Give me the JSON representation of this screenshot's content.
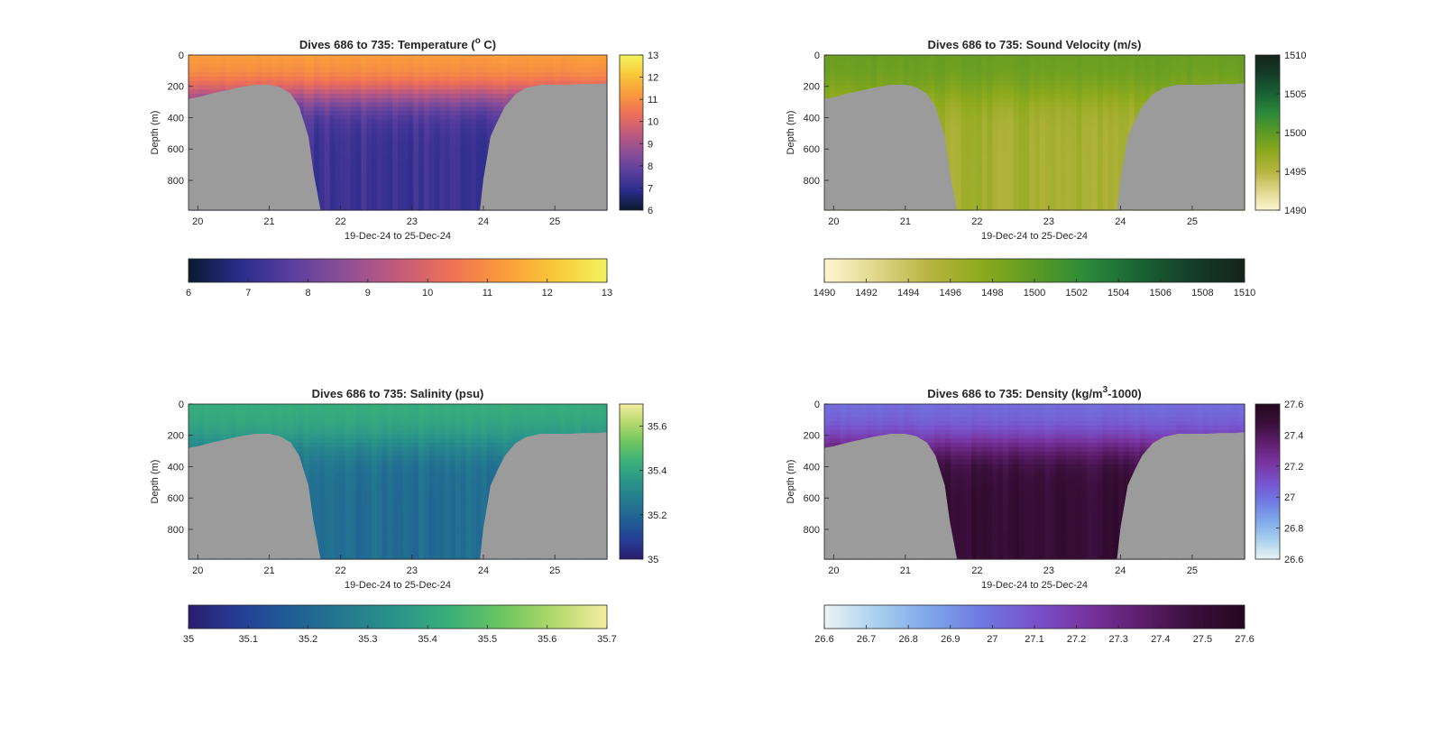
{
  "chart_data": [
    {
      "type": "heatmap",
      "variable": "temperature",
      "title": "Dives 686 to 735: Temperature (",
      "title_sup": "o",
      "title_end": " C)",
      "xlabel": "19-Dec-24 to 25-Dec-24",
      "ylabel": "Depth (m)",
      "x_ticks": [
        "20",
        "21",
        "22",
        "23",
        "24",
        "25"
      ],
      "y_ticks": [
        "0",
        "200",
        "400",
        "600",
        "800"
      ],
      "xlim": [
        19.87,
        25.73
      ],
      "ylim": [
        990,
        0
      ],
      "clim": [
        6,
        13
      ],
      "colormap": [
        "#0a1a2e",
        "#2b2c8c",
        "#5b3f9e",
        "#8e4f96",
        "#c25a7c",
        "#ee7156",
        "#fa9a3c",
        "#f9c83a",
        "#f2f35e"
      ],
      "side_colorbar_ticks": [
        "6",
        "7",
        "8",
        "9",
        "10",
        "11",
        "12",
        "13"
      ],
      "bottom_colorbar_ticks": [
        "6",
        "7",
        "8",
        "9",
        "10",
        "11",
        "12",
        "13"
      ],
      "surface_value": 11.4,
      "deep_value": 7.2,
      "grid": false
    },
    {
      "type": "heatmap",
      "variable": "sound_velocity",
      "title": "Dives 686 to 735: Sound Velocity (m/s)",
      "xlabel": "19-Dec-24 to 25-Dec-24",
      "ylabel": "Depth (m)",
      "x_ticks": [
        "20",
        "21",
        "22",
        "23",
        "24",
        "25"
      ],
      "y_ticks": [
        "0",
        "200",
        "400",
        "600",
        "800"
      ],
      "xlim": [
        19.87,
        25.73
      ],
      "ylim": [
        990,
        0
      ],
      "clim": [
        1490,
        1510
      ],
      "colormap": [
        "#fdf7d2",
        "#e0d68a",
        "#b7b440",
        "#8da91d",
        "#5b9a24",
        "#2c8a3a",
        "#196234",
        "#143e28",
        "#15231a"
      ],
      "side_colorbar_ticks": [
        "1490",
        "1495",
        "1500",
        "1505",
        "1510"
      ],
      "bottom_colorbar_ticks": [
        "1490",
        "1492",
        "1494",
        "1496",
        "1498",
        "1500",
        "1502",
        "1504",
        "1506",
        "1508",
        "1510"
      ],
      "surface_value": 1499.4,
      "deep_value": 1496.2,
      "grid": false
    },
    {
      "type": "heatmap",
      "variable": "salinity",
      "title": "Dives 686 to 735: Salinity (psu)",
      "xlabel": "19-Dec-24 to 25-Dec-24",
      "ylabel": "Depth (m)",
      "x_ticks": [
        "20",
        "21",
        "22",
        "23",
        "24",
        "25"
      ],
      "y_ticks": [
        "0",
        "200",
        "400",
        "600",
        "800"
      ],
      "xlim": [
        19.87,
        25.73
      ],
      "ylim": [
        990,
        0
      ],
      "clim": [
        35.0,
        35.7
      ],
      "colormap": [
        "#2a1c6e",
        "#253f96",
        "#1f5f94",
        "#247a8f",
        "#2a958a",
        "#3ab07a",
        "#6cc55f",
        "#b3d86b",
        "#f4eda0"
      ],
      "side_colorbar_ticks": [
        "35",
        "35.2",
        "35.4",
        "35.6"
      ],
      "bottom_colorbar_ticks": [
        "35",
        "35.1",
        "35.2",
        "35.3",
        "35.4",
        "35.5",
        "35.6",
        "35.7"
      ],
      "surface_value": 35.43,
      "deep_value": 35.22,
      "grid": false
    },
    {
      "type": "heatmap",
      "variable": "density",
      "title": "Dives 686 to 735: Density (kg/m",
      "title_sup": "3",
      "title_end": "-1000)",
      "xlabel": "19-Dec-24 to 25-Dec-24",
      "ylabel": "Depth (m)",
      "x_ticks": [
        "20",
        "21",
        "22",
        "23",
        "24",
        "25"
      ],
      "y_ticks": [
        "0",
        "200",
        "400",
        "600",
        "800"
      ],
      "xlim": [
        19.87,
        25.73
      ],
      "ylim": [
        990,
        0
      ],
      "clim": [
        26.6,
        27.6
      ],
      "colormap": [
        "#eaf4f4",
        "#a9d0ee",
        "#7ea7ea",
        "#7078e2",
        "#7852cc",
        "#78339e",
        "#5e1f6e",
        "#3a0f3b",
        "#25071f"
      ],
      "side_colorbar_ticks": [
        "26.6",
        "26.8",
        "27",
        "27.2",
        "27.4",
        "27.6"
      ],
      "bottom_colorbar_ticks": [
        "26.6",
        "26.7",
        "26.8",
        "26.9",
        "27",
        "27.1",
        "27.2",
        "27.3",
        "27.4",
        "27.5",
        "27.6"
      ],
      "surface_value": 27.0,
      "deep_value": 27.5,
      "grid": false
    }
  ],
  "colors": {
    "seafloor": "#9b9b9b",
    "axis": "#262626",
    "background": "#ffffff"
  },
  "seafloor_depth_m": [
    [
      19.87,
      280
    ],
    [
      20.0,
      270
    ],
    [
      20.2,
      245
    ],
    [
      20.4,
      225
    ],
    [
      20.6,
      205
    ],
    [
      20.8,
      190
    ],
    [
      21.0,
      190
    ],
    [
      21.15,
      205
    ],
    [
      21.3,
      245
    ],
    [
      21.42,
      330
    ],
    [
      21.55,
      520
    ],
    [
      21.62,
      750
    ],
    [
      21.72,
      990
    ],
    [
      23.95,
      990
    ],
    [
      24.0,
      790
    ],
    [
      24.1,
      520
    ],
    [
      24.2,
      420
    ],
    [
      24.3,
      330
    ],
    [
      24.45,
      250
    ],
    [
      24.6,
      210
    ],
    [
      24.8,
      190
    ],
    [
      25.0,
      190
    ],
    [
      25.2,
      190
    ],
    [
      25.4,
      185
    ],
    [
      25.6,
      185
    ],
    [
      25.73,
      180
    ]
  ]
}
